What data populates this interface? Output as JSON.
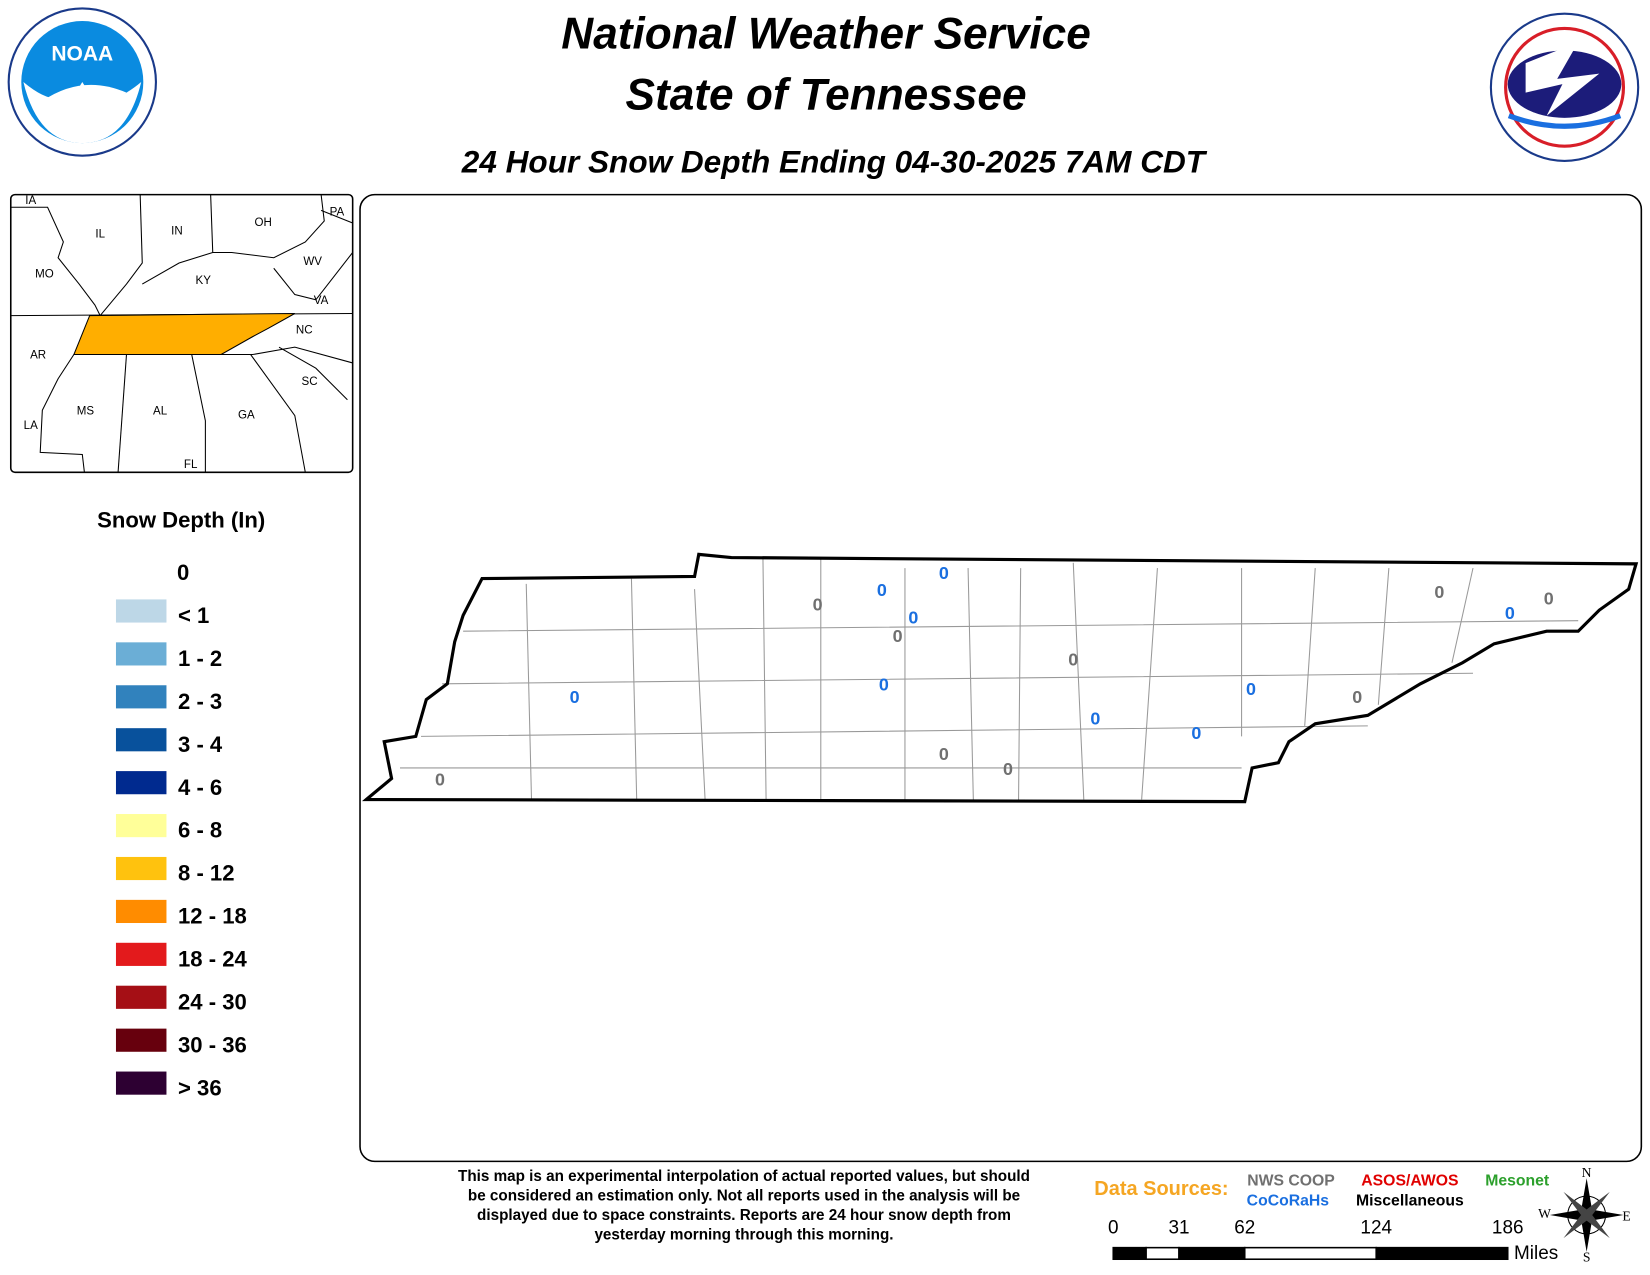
{
  "header": {
    "title_line1": "National Weather Service",
    "title_line2": "State of Tennessee",
    "subtitle": "24 Hour Snow Depth Ending 04-30-2025 7AM CDT"
  },
  "inset": {
    "states": [
      "IA",
      "IL",
      "IN",
      "OH",
      "PA",
      "MO",
      "KY",
      "WV",
      "VA",
      "NC",
      "AR",
      "SC",
      "MS",
      "AL",
      "GA",
      "LA",
      "FL"
    ]
  },
  "legend": {
    "title": "Snow Depth (In)",
    "items": [
      {
        "label": "0"
      },
      {
        "label": "< 1",
        "color": "#bdd7e7"
      },
      {
        "label": "1 - 2",
        "color": "#6baed6"
      },
      {
        "label": "2 - 3",
        "color": "#3182bd"
      },
      {
        "label": "3 - 4",
        "color": "#08519c"
      },
      {
        "label": "4 - 6",
        "color": "#002a8f"
      },
      {
        "label": "6 - 8",
        "color": "#ffff99"
      },
      {
        "label": "8 - 12",
        "color": "#ffc20e"
      },
      {
        "label": "12 - 18",
        "color": "#ff8c00"
      },
      {
        "label": "18 - 24",
        "color": "#e31a1c"
      },
      {
        "label": "24 - 30",
        "color": "#a50f15"
      },
      {
        "label": "30 - 36",
        "color": "#67000d"
      },
      {
        "label": "> 36",
        "color": "#2d0032"
      }
    ]
  },
  "observations": {
    "nws_coop": [
      0,
      0,
      0,
      0,
      0,
      0,
      0,
      0,
      0
    ],
    "cocorahs": [
      0,
      0,
      0,
      0,
      0,
      0,
      0,
      0,
      0
    ]
  },
  "note": [
    "This map is an experimental interpolation of actual reported values, but should",
    "be considered an estimation only. Not all reports used in the analysis will be",
    "displayed due to space constraints. Reports are 24 hour snow depth from",
    "yesterday morning through this morning."
  ],
  "data_sources": {
    "label": "Data Sources:",
    "items": [
      {
        "name": "NWS COOP",
        "color": "#707070"
      },
      {
        "name": "ASOS/AWOS",
        "color": "#e00000"
      },
      {
        "name": "Mesonet",
        "color": "#2ca02c"
      },
      {
        "name": "CoCoRaHs",
        "color": "#1a6fe0"
      },
      {
        "name": "Miscellaneous",
        "color": "#000000"
      }
    ]
  },
  "scale": {
    "ticks": [
      0,
      31,
      62,
      124,
      186
    ],
    "unit": "Miles"
  },
  "compass": {
    "n": "N",
    "e": "E",
    "s": "S",
    "w": "W"
  }
}
